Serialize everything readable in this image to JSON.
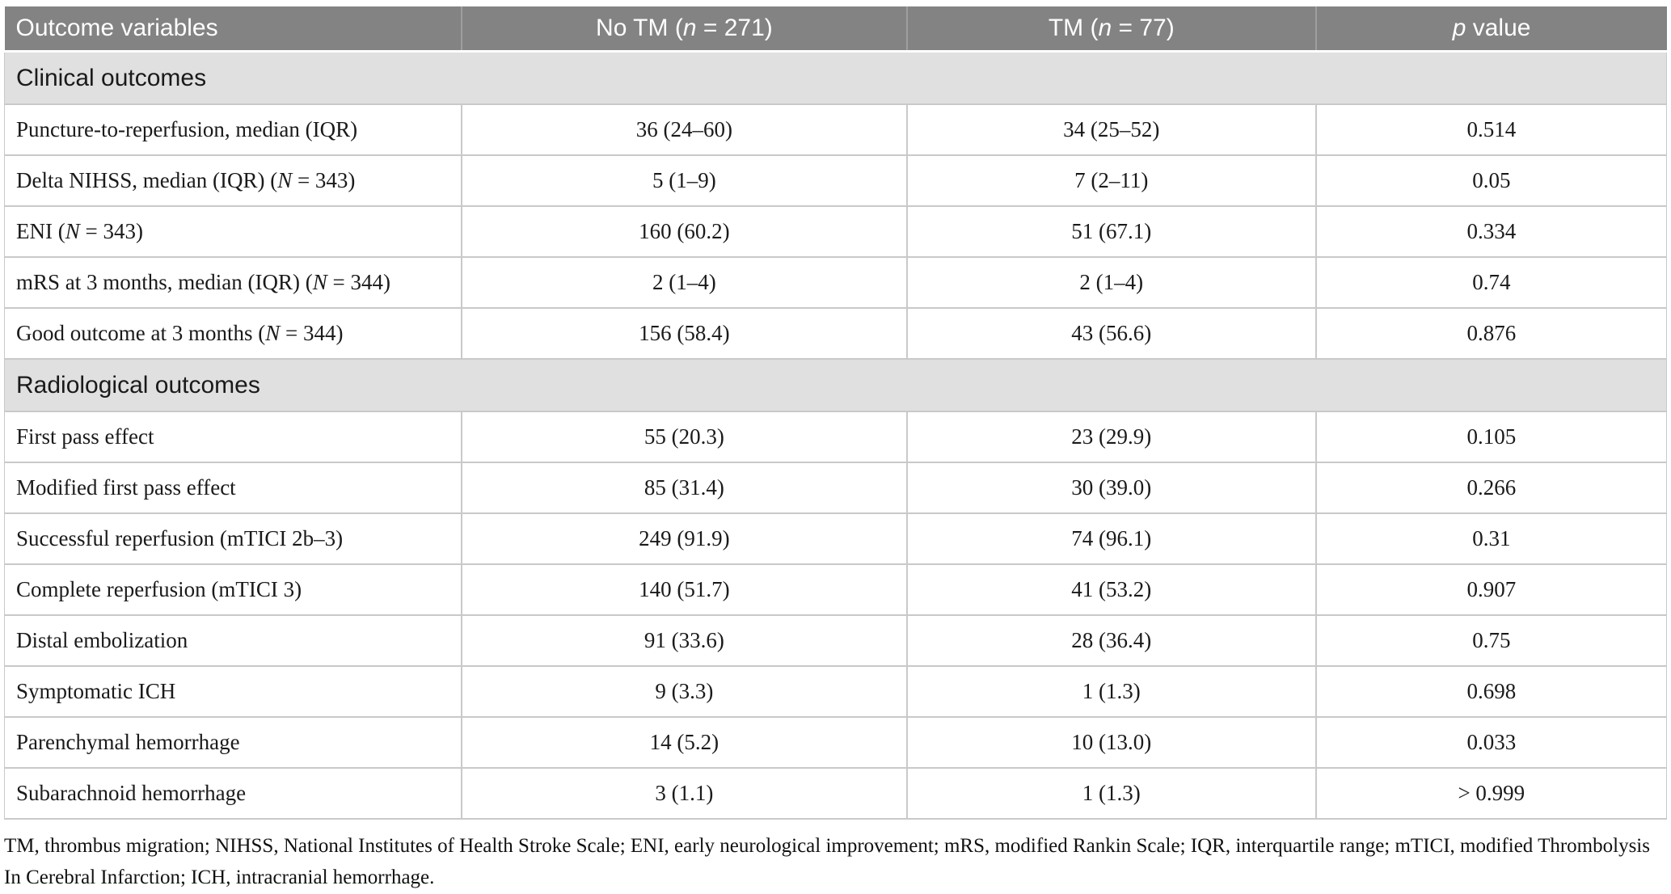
{
  "table": {
    "header": {
      "col1": "Outcome variables",
      "col2": {
        "pre": "No TM (",
        "it": "n",
        "post": " = 271)"
      },
      "col3": {
        "pre": "TM (",
        "it": "n",
        "post": " = 77)"
      },
      "col4": {
        "pre": "",
        "it": "p",
        "post": " value"
      }
    },
    "sections": [
      {
        "title": "Clinical outcomes",
        "rows": [
          {
            "label": [
              {
                "text": "Puncture-to-reperfusion, median (IQR)"
              }
            ],
            "values": [
              "36 (24–60)",
              "34 (25–52)",
              "0.514"
            ]
          },
          {
            "label": [
              {
                "text": "Delta NIHSS, median (IQR) ("
              },
              {
                "text": "N",
                "italic": true
              },
              {
                "text": " = 343)"
              }
            ],
            "values": [
              "5 (1–9)",
              "7 (2–11)",
              "0.05"
            ]
          },
          {
            "label": [
              {
                "text": "ENI ("
              },
              {
                "text": "N",
                "italic": true
              },
              {
                "text": " = 343)"
              }
            ],
            "values": [
              "160 (60.2)",
              "51 (67.1)",
              "0.334"
            ]
          },
          {
            "label": [
              {
                "text": "mRS at 3 months, median (IQR) ("
              },
              {
                "text": "N",
                "italic": true
              },
              {
                "text": " = 344)"
              }
            ],
            "values": [
              "2 (1–4)",
              "2 (1–4)",
              "0.74"
            ]
          },
          {
            "label": [
              {
                "text": "Good outcome at 3 months ("
              },
              {
                "text": "N",
                "italic": true
              },
              {
                "text": " = 344)"
              }
            ],
            "values": [
              "156 (58.4)",
              "43 (56.6)",
              "0.876"
            ]
          }
        ]
      },
      {
        "title": "Radiological outcomes",
        "rows": [
          {
            "label": [
              {
                "text": "First pass effect"
              }
            ],
            "values": [
              "55 (20.3)",
              "23 (29.9)",
              "0.105"
            ]
          },
          {
            "label": [
              {
                "text": "Modified first pass effect"
              }
            ],
            "values": [
              "85 (31.4)",
              "30 (39.0)",
              "0.266"
            ]
          },
          {
            "label": [
              {
                "text": "Successful reperfusion (mTICI 2b–3)"
              }
            ],
            "values": [
              "249 (91.9)",
              "74 (96.1)",
              "0.31"
            ]
          },
          {
            "label": [
              {
                "text": "Complete reperfusion (mTICI 3)"
              }
            ],
            "values": [
              "140 (51.7)",
              "41 (53.2)",
              "0.907"
            ]
          },
          {
            "label": [
              {
                "text": "Distal embolization"
              }
            ],
            "values": [
              "91 (33.6)",
              "28 (36.4)",
              "0.75"
            ]
          },
          {
            "label": [
              {
                "text": "Symptomatic ICH"
              }
            ],
            "values": [
              "9 (3.3)",
              "1 (1.3)",
              "0.698"
            ]
          },
          {
            "label": [
              {
                "text": "Parenchymal hemorrhage"
              }
            ],
            "values": [
              "14 (5.2)",
              "10 (13.0)",
              "0.033"
            ]
          },
          {
            "label": [
              {
                "text": "Subarachnoid hemorrhage"
              }
            ],
            "values": [
              "3 (1.1)",
              "1 (1.3)",
              "> 0.999"
            ]
          }
        ]
      }
    ],
    "footnote": "TM, thrombus migration; NIHSS, National Institutes of Health Stroke Scale; ENI, early neurological improvement; mRS, modified Rankin Scale; IQR, interquartile range; mTICI, modified Thrombolysis In Cerebral Infarction; ICH, intracranial hemorrhage.",
    "value_column_names": [
      "no-tm-value",
      "tm-value",
      "p-value"
    ]
  },
  "colors": {
    "header_bg": "#838383",
    "header_text": "#ffffff",
    "section_bg": "#e0e0e0",
    "body_text": "#1a1a1a",
    "border": "#c9c9c9"
  }
}
